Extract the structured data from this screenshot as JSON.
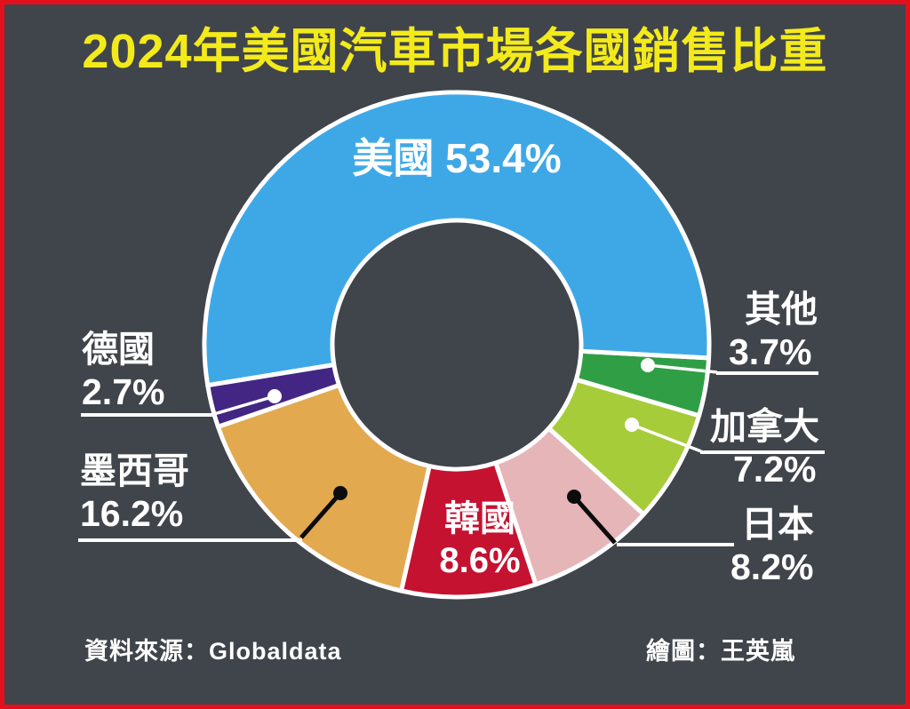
{
  "title": "2024年美國汽車市場各國銷售比重",
  "source_label": "資料來源：Globaldata",
  "credit_label": "繪圖：王英嵐",
  "colors": {
    "background": "#40444B",
    "frame_border": "#E3101C",
    "title_text": "#F3EA1B",
    "label_text": "#FFFFFF",
    "separator": "#FFFFFF",
    "leader_dark": "#0C0C0D"
  },
  "chart_data": {
    "type": "pie",
    "subtype": "donut",
    "title": "2024年美國汽車市場各國銷售比重",
    "unit": "%",
    "direction": "clockwise",
    "start_angle_deg": 93,
    "legend_position": "outside-callouts",
    "segments": [
      {
        "id": "others",
        "label": "其他",
        "value": 3.7,
        "color": "#2F9E45"
      },
      {
        "id": "canada",
        "label": "加拿大",
        "value": 7.2,
        "color": "#A6CC39"
      },
      {
        "id": "japan",
        "label": "日本",
        "value": 8.2,
        "color": "#E6B5B8"
      },
      {
        "id": "korea",
        "label": "韓國",
        "value": 8.6,
        "color": "#C41230"
      },
      {
        "id": "mexico",
        "label": "墨西哥",
        "value": 16.2,
        "color": "#E2A94F"
      },
      {
        "id": "germany",
        "label": "德國",
        "value": 2.7,
        "color": "#432683"
      },
      {
        "id": "usa",
        "label": "美國",
        "value": 53.4,
        "color": "#3EA8E7"
      }
    ]
  },
  "labels": {
    "usa": {
      "name": "美國",
      "pct": "53.4%"
    },
    "others": {
      "name": "其他",
      "pct": "3.7%"
    },
    "canada": {
      "name": "加拿大",
      "pct": "7.2%"
    },
    "japan": {
      "name": "日本",
      "pct": "8.2%"
    },
    "korea": {
      "name": "韓國",
      "pct": "8.6%"
    },
    "mexico": {
      "name": "墨西哥",
      "pct": "16.2%"
    },
    "germany": {
      "name": "德國",
      "pct": "2.7%"
    }
  }
}
